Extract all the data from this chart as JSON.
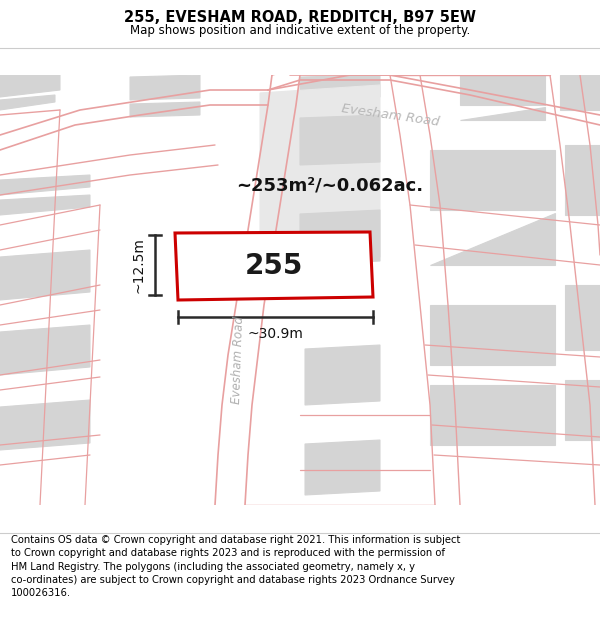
{
  "title": "255, EVESHAM ROAD, REDDITCH, B97 5EW",
  "subtitle": "Map shows position and indicative extent of the property.",
  "footer": "Contains OS data © Crown copyright and database right 2021. This information is subject\nto Crown copyright and database rights 2023 and is reproduced with the permission of\nHM Land Registry. The polygons (including the associated geometry, namely x, y\nco-ordinates) are subject to Crown copyright and database rights 2023 Ordnance Survey\n100026316.",
  "area_label": "~253m²/~0.062ac.",
  "property_number": "255",
  "dim_width": "~30.9m",
  "dim_height": "~12.5m",
  "bg_color": "#f0f0f0",
  "map_bg": "#ffffff",
  "building_color": "#d4d4d4",
  "road_line_color": "#e8a0a0",
  "property_outline_color": "#cc0000",
  "dim_line_color": "#2a2a2a",
  "title_fontsize": 10.5,
  "subtitle_fontsize": 8.5,
  "footer_fontsize": 7.2,
  "road_label_color": "#b0b0b0",
  "road_label_top_color": "#b8b8b8"
}
